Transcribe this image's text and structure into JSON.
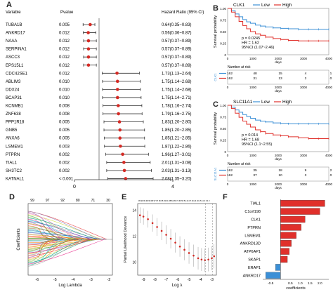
{
  "panel_labels": {
    "a": "A",
    "b": "B",
    "c": "C",
    "d": "D",
    "e": "E",
    "f": "F"
  },
  "forest": {
    "headers": {
      "variable": "Variable",
      "pvalue": "Pvalue",
      "hr": "Hazard Ratio (95% CI)"
    },
    "x_ticks": [
      "0",
      "4"
    ],
    "x_range": [
      0,
      4
    ],
    "rows": [
      {
        "variable": "TUBA1B",
        "pvalue": "0.005",
        "hr_text": "0.64(0.35~0.83)",
        "hr": 0.64,
        "lo": 0.35,
        "hi": 0.83
      },
      {
        "variable": "ANKRD17",
        "pvalue": "0.012",
        "hr_text": "0.56(0.36~0.87)",
        "hr": 0.56,
        "lo": 0.36,
        "hi": 0.87
      },
      {
        "variable": "NAAA",
        "pvalue": "0.012",
        "hr_text": "0.57(0.37~0.89)",
        "hr": 0.57,
        "lo": 0.37,
        "hi": 0.89
      },
      {
        "variable": "SERPINA1",
        "pvalue": "0.012",
        "hr_text": "0.57(0.37~0.89)",
        "hr": 0.57,
        "lo": 0.37,
        "hi": 0.89
      },
      {
        "variable": "ASCC3",
        "pvalue": "0.012",
        "hr_text": "0.57(0.37~0.89)",
        "hr": 0.57,
        "lo": 0.37,
        "hi": 0.89
      },
      {
        "variable": "EPS15L1",
        "pvalue": "0.012",
        "hr_text": "0.57(0.37~0.89)",
        "hr": 0.57,
        "lo": 0.37,
        "hi": 0.89
      },
      {
        "variable": "CDC42SE1",
        "pvalue": "0.012",
        "hr_text": "1.73(1.13~2.64)",
        "hr": 1.73,
        "lo": 1.13,
        "hi": 2.64
      },
      {
        "variable": "ABLIM3",
        "pvalue": "0.010",
        "hr_text": "1.75(1.14~2.68)",
        "hr": 1.75,
        "lo": 1.14,
        "hi": 2.68
      },
      {
        "variable": "DDX24",
        "pvalue": "0.010",
        "hr_text": "1.75(1.14~2.68)",
        "hr": 1.75,
        "lo": 1.14,
        "hi": 2.68
      },
      {
        "variable": "BCAP31",
        "pvalue": "0.010",
        "hr_text": "1.75(1.14~2.71)",
        "hr": 1.75,
        "lo": 1.14,
        "hi": 2.71
      },
      {
        "variable": "KCNMB1",
        "pvalue": "0.008",
        "hr_text": "1.78(1.16~2.74)",
        "hr": 1.78,
        "lo": 1.16,
        "hi": 2.74
      },
      {
        "variable": "ZNF638",
        "pvalue": "0.008",
        "hr_text": "1.79(1.16~2.75)",
        "hr": 1.79,
        "lo": 1.16,
        "hi": 2.75
      },
      {
        "variable": "PPP1R18",
        "pvalue": "0.005",
        "hr_text": "1.83(1.20~2.80)",
        "hr": 1.83,
        "lo": 1.2,
        "hi": 2.8
      },
      {
        "variable": "GNB5",
        "pvalue": "0.005",
        "hr_text": "1.85(1.20~2.85)",
        "hr": 1.85,
        "lo": 1.2,
        "hi": 2.85
      },
      {
        "variable": "ANXA6",
        "pvalue": "0.005",
        "hr_text": "1.85(1.21~2.85)",
        "hr": 1.85,
        "lo": 1.21,
        "hi": 2.85
      },
      {
        "variable": "LSMEM1",
        "pvalue": "0.003",
        "hr_text": "1.87(1.22~2.86)",
        "hr": 1.87,
        "lo": 1.22,
        "hi": 2.86
      },
      {
        "variable": "PTPRN",
        "pvalue": "0.002",
        "hr_text": "1.96(1.27~3.01)",
        "hr": 1.96,
        "lo": 1.27,
        "hi": 3.01
      },
      {
        "variable": "TIAL1",
        "pvalue": "0.002",
        "hr_text": "2.01(1.31~3.08)",
        "hr": 2.01,
        "lo": 1.31,
        "hi": 3.08
      },
      {
        "variable": "SH3TC2",
        "pvalue": "0.002",
        "hr_text": "2.03(1.31~3.13)",
        "hr": 2.03,
        "lo": 1.31,
        "hi": 3.13
      },
      {
        "variable": "KATNAL1",
        "pvalue": "< 0.001",
        "hr_text": "2.08(1.35~3.20)",
        "hr": 2.08,
        "lo": 1.35,
        "hi": 3.2
      }
    ]
  },
  "km_b": {
    "gene": "CLK1",
    "legend": [
      "Low",
      "High"
    ],
    "colors": {
      "low": "#3b8fd6",
      "high": "#e0302b"
    },
    "ylabel": "Survival probability",
    "xlabel": "days",
    "y_ticks": [
      "1.00",
      "0.75",
      "0.50",
      "0.25",
      "0"
    ],
    "x_ticks": [
      "0",
      "1000",
      "2000",
      "3000",
      "4000"
    ],
    "stats": [
      "p = 0.0245",
      "HR = 1.62",
      "95%CI (1.07~2.46)"
    ],
    "risk_title": "Number at risk",
    "risk_rows": [
      {
        "label": "Low",
        "values": [
          "162",
          "48",
          "15",
          "4",
          "1"
        ]
      },
      {
        "label": "High",
        "values": [
          "162",
          "31",
          "13",
          "2",
          "0"
        ]
      }
    ],
    "risk_side_label": "CLK1",
    "low_curve": [
      [
        0,
        1.0
      ],
      [
        150,
        0.95
      ],
      [
        300,
        0.88
      ],
      [
        450,
        0.82
      ],
      [
        600,
        0.76
      ],
      [
        750,
        0.71
      ],
      [
        900,
        0.68
      ],
      [
        1100,
        0.64
      ],
      [
        1300,
        0.62
      ],
      [
        1500,
        0.6
      ],
      [
        1800,
        0.58
      ],
      [
        2100,
        0.57
      ],
      [
        2400,
        0.56
      ],
      [
        2800,
        0.55
      ],
      [
        3200,
        0.55
      ],
      [
        3600,
        0.55
      ],
      [
        4000,
        0.55
      ]
    ],
    "high_curve": [
      [
        0,
        1.0
      ],
      [
        150,
        0.92
      ],
      [
        300,
        0.82
      ],
      [
        450,
        0.72
      ],
      [
        600,
        0.63
      ],
      [
        750,
        0.56
      ],
      [
        900,
        0.5
      ],
      [
        1100,
        0.45
      ],
      [
        1300,
        0.42
      ],
      [
        1500,
        0.38
      ],
      [
        1800,
        0.35
      ],
      [
        2100,
        0.33
      ],
      [
        2400,
        0.31
      ],
      [
        2800,
        0.3
      ],
      [
        3200,
        0.3
      ],
      [
        3600,
        0.3
      ],
      [
        4000,
        0.3
      ]
    ]
  },
  "km_c": {
    "gene": "SLC11A1",
    "legend": [
      "Low",
      "High"
    ],
    "colors": {
      "low": "#3b8fd6",
      "high": "#e0302b"
    },
    "ylabel": "Survival probability",
    "xlabel": "days",
    "y_ticks": [
      "1.00",
      "0.75",
      "0.50",
      "0.25",
      "0"
    ],
    "x_ticks": [
      "0",
      "1000",
      "2000",
      "3000",
      "4000"
    ],
    "stats": [
      "p = 0.014",
      "HR = 1.68",
      "95%CI (1.1~2.55)"
    ],
    "risk_title": "Number at risk",
    "risk_rows": [
      {
        "label": "Low",
        "values": [
          "162",
          "35",
          "18",
          "9",
          "2"
        ]
      },
      {
        "label": "High",
        "values": [
          "162",
          "37",
          "10",
          "3",
          "0"
        ]
      }
    ],
    "risk_side_label": "SLC11A1",
    "low_curve": [
      [
        0,
        1.0
      ],
      [
        150,
        0.96
      ],
      [
        300,
        0.9
      ],
      [
        450,
        0.85
      ],
      [
        600,
        0.8
      ],
      [
        750,
        0.76
      ],
      [
        900,
        0.72
      ],
      [
        1100,
        0.68
      ],
      [
        1300,
        0.66
      ],
      [
        1500,
        0.64
      ],
      [
        1800,
        0.62
      ],
      [
        2100,
        0.61
      ],
      [
        2400,
        0.6
      ],
      [
        2800,
        0.6
      ],
      [
        3200,
        0.6
      ],
      [
        3600,
        0.6
      ],
      [
        4000,
        0.6
      ]
    ],
    "high_curve": [
      [
        0,
        1.0
      ],
      [
        150,
        0.93
      ],
      [
        300,
        0.83
      ],
      [
        450,
        0.74
      ],
      [
        600,
        0.66
      ],
      [
        750,
        0.59
      ],
      [
        900,
        0.53
      ],
      [
        1100,
        0.47
      ],
      [
        1300,
        0.43
      ],
      [
        1500,
        0.39
      ],
      [
        1800,
        0.36
      ],
      [
        2100,
        0.34
      ],
      [
        2400,
        0.32
      ],
      [
        2800,
        0.3
      ],
      [
        3200,
        0.28
      ],
      [
        3600,
        0.28
      ],
      [
        4000,
        0.28
      ]
    ]
  },
  "lasso_d": {
    "ylabel": "Coefficients",
    "xlabel": "Log Lambda",
    "top_ticks": [
      "99",
      "97",
      "92",
      "80",
      "71",
      "30"
    ],
    "x_ticks": [
      "-6",
      "-5",
      "-4",
      "-3",
      "-2"
    ],
    "x_range": [
      -6.5,
      -1.8
    ]
  },
  "cv_e": {
    "ylabel": "Partial Likelihood Deviance",
    "xlabel": "Log λ",
    "top_ticks_text": "99 99 99 99 98 98 97 97 96 95 93 91 88 84 80 74 66 58 51 44 37 29 24 20 15 11 9 6 4 3",
    "x_ticks": [
      "-9",
      "-8",
      "-7",
      "-6",
      "-5",
      "-4",
      "-3"
    ],
    "x_range": [
      -9.5,
      -2.6
    ],
    "y_range": [
      9.0,
      14.5
    ],
    "y_ticks": [
      "10",
      "12",
      "14"
    ],
    "min_line": -3.55,
    "se_line": -2.95,
    "curve": [
      [
        -9.3,
        13.6
      ],
      [
        -9.0,
        13.5
      ],
      [
        -8.6,
        13.3
      ],
      [
        -8.2,
        13.0
      ],
      [
        -7.8,
        12.7
      ],
      [
        -7.4,
        12.4
      ],
      [
        -7.0,
        12.1
      ],
      [
        -6.6,
        11.8
      ],
      [
        -6.2,
        11.5
      ],
      [
        -5.8,
        11.2
      ],
      [
        -5.4,
        10.95
      ],
      [
        -5.0,
        10.7
      ],
      [
        -4.6,
        10.5
      ],
      [
        -4.2,
        10.3
      ],
      [
        -3.9,
        10.2
      ],
      [
        -3.6,
        10.15
      ],
      [
        -3.3,
        10.2
      ],
      [
        -3.0,
        10.3
      ],
      [
        -2.8,
        10.45
      ]
    ],
    "point_color": "#d42a24"
  },
  "coef_f": {
    "xlabel": "coefficients",
    "x_ticks": [
      "-0.5",
      "0.5",
      "1.0",
      "1.5",
      "2.0"
    ],
    "x_range": [
      -0.9,
      2.45
    ],
    "genes": [
      {
        "name": "TIAL1",
        "value": 2.25
      },
      {
        "name": "C1orf198",
        "value": 2.0
      },
      {
        "name": "CLK1",
        "value": 1.25
      },
      {
        "name": "PTPRN",
        "value": 1.05
      },
      {
        "name": "LSMEM1",
        "value": 0.8
      },
      {
        "name": "ANKRD13D",
        "value": 0.55
      },
      {
        "name": "ATP6AP1",
        "value": 0.45
      },
      {
        "name": "SKAP1",
        "value": 0.35
      },
      {
        "name": "ERAP1",
        "value": -0.25
      },
      {
        "name": "ANKRD17",
        "value": -0.75
      }
    ],
    "pos_color": "#e0302b",
    "neg_color": "#3b8fd6"
  }
}
